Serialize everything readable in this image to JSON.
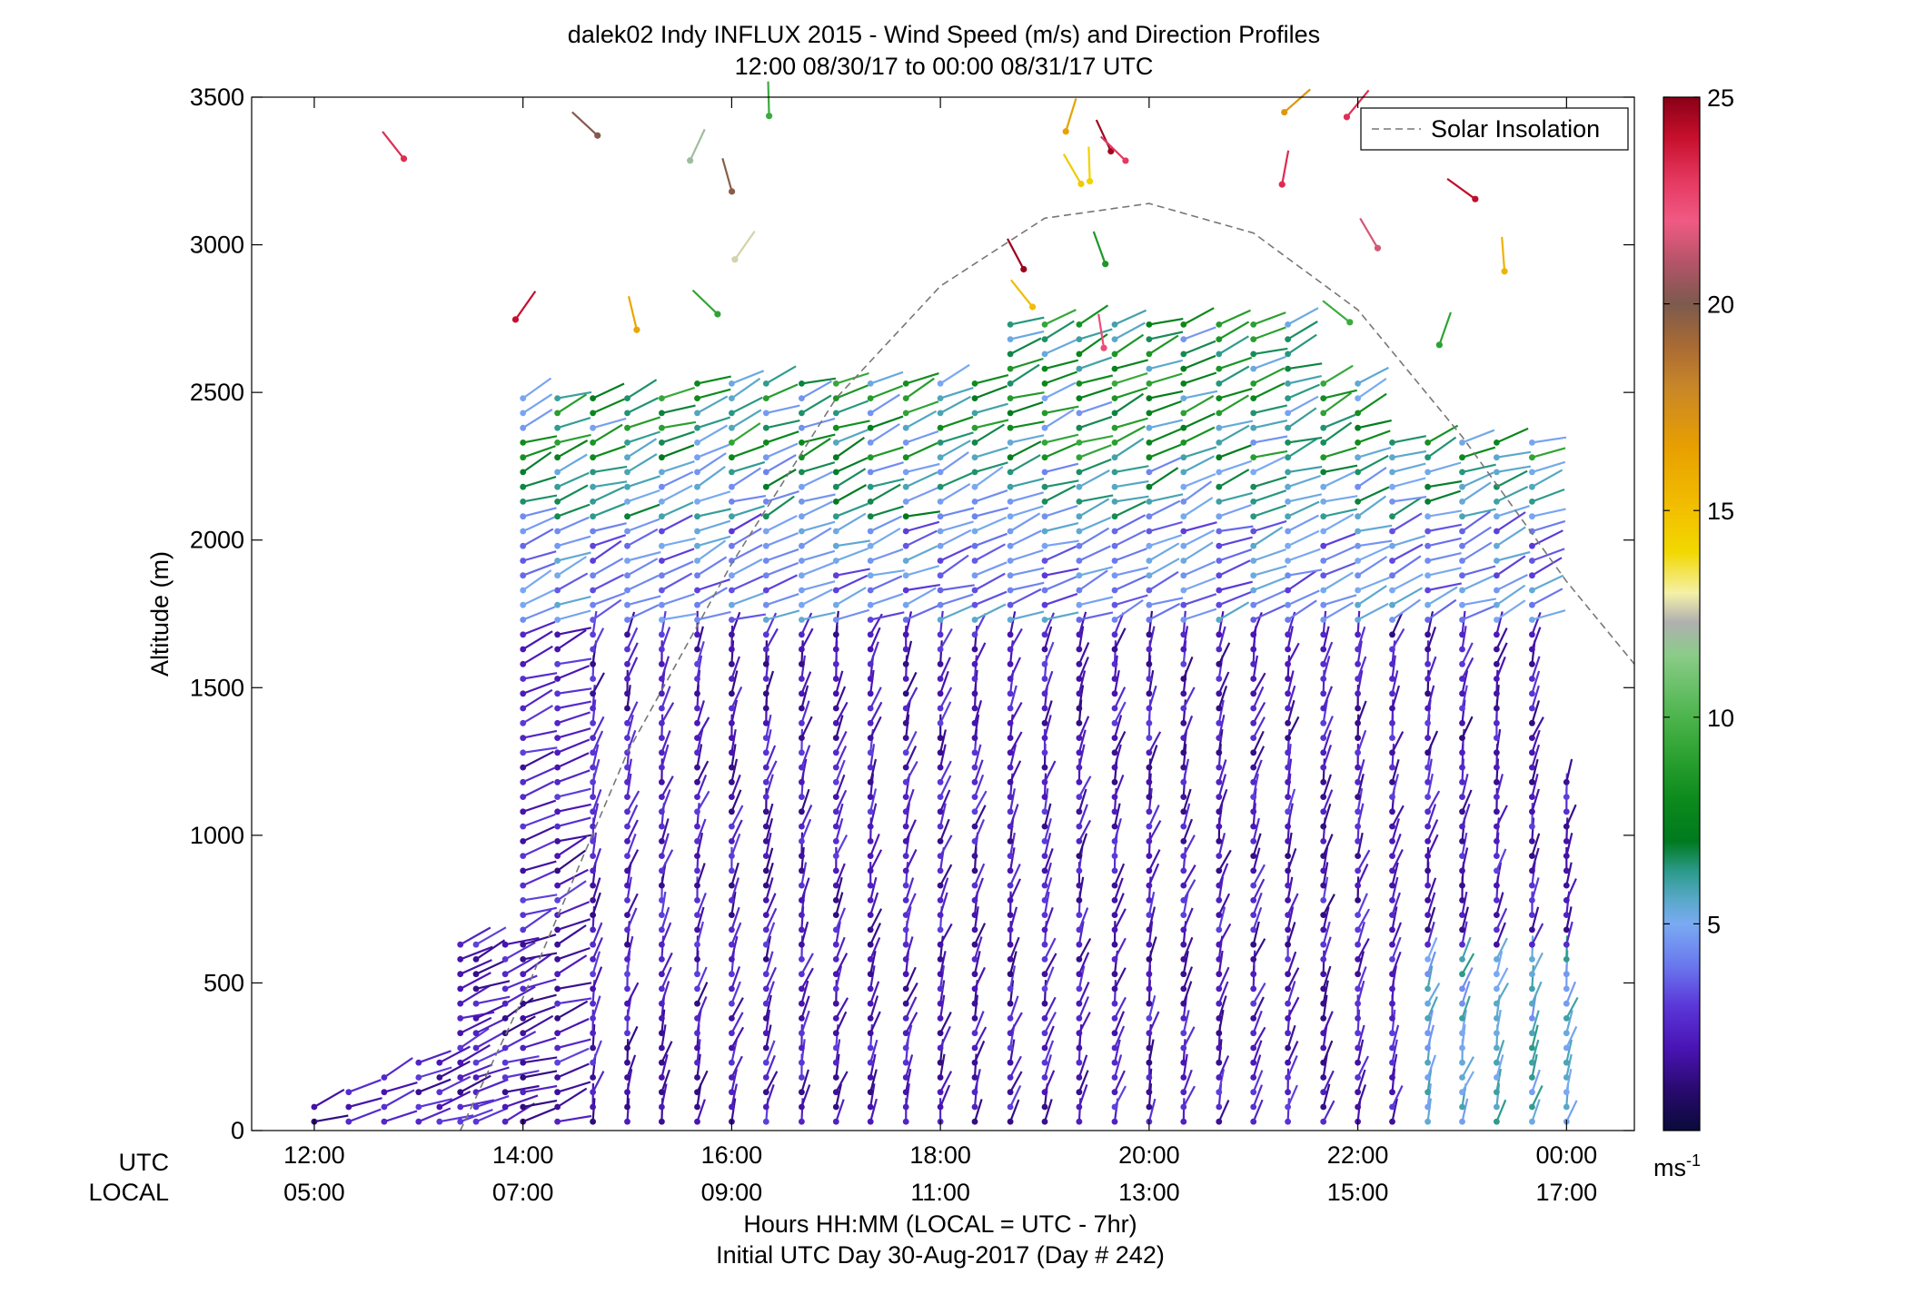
{
  "chart_data": {
    "type": "scatter",
    "subtype": "wind-barb profile",
    "title_line1": "dalek02 Indy INFLUX 2015 - Wind Speed (m/s) and Direction Profiles",
    "title_line2": "12:00 08/30/17 to 00:00 08/31/17  UTC",
    "ylabel": "Altitude (m)",
    "xlabel": "Hours HH:MM  (LOCAL = UTC - 7hr)",
    "xlabel2": "Initial UTC Day 30-Aug-2017 (Day # 242)",
    "row_label_utc": "UTC",
    "row_label_local": "LOCAL",
    "x_ticks_utc": [
      "12:00",
      "14:00",
      "16:00",
      "18:00",
      "20:00",
      "22:00",
      "00:00"
    ],
    "x_ticks_local": [
      "05:00",
      "07:00",
      "09:00",
      "11:00",
      "13:00",
      "15:00",
      "17:00"
    ],
    "x_tick_hours": [
      12,
      14,
      16,
      18,
      20,
      22,
      24
    ],
    "xlim": [
      11.4,
      24.65
    ],
    "ylim": [
      0,
      3500
    ],
    "y_ticks": [
      0,
      500,
      1000,
      1500,
      2000,
      2500,
      3000,
      3500
    ],
    "legend": {
      "entries": [
        "Solar Insolation"
      ],
      "position": "top-right"
    },
    "colorbar": {
      "ticks": [
        5,
        10,
        15,
        20,
        25
      ],
      "range": [
        0,
        25
      ],
      "unit_base": "ms",
      "unit_exp": "-1",
      "colors": [
        [
          0,
          "#0a0a3a"
        ],
        [
          1,
          "#2a0a70"
        ],
        [
          2,
          "#4a14b4"
        ],
        [
          3,
          "#5a36d8"
        ],
        [
          4,
          "#6a78ee"
        ],
        [
          5,
          "#7aaaf2"
        ],
        [
          5.6,
          "#58a8c8"
        ],
        [
          6.3,
          "#2a9a88"
        ],
        [
          7,
          "#007a1e"
        ],
        [
          8,
          "#0c8a1c"
        ],
        [
          9,
          "#2aa030"
        ],
        [
          10,
          "#4cb44c"
        ],
        [
          11.5,
          "#8acc88"
        ],
        [
          12.3,
          "#b0b0b0"
        ],
        [
          13,
          "#f4f0a8"
        ],
        [
          14,
          "#f2d800"
        ],
        [
          15,
          "#f2c000"
        ],
        [
          16.5,
          "#e8a000"
        ],
        [
          18,
          "#c88628"
        ],
        [
          19,
          "#a86a34"
        ],
        [
          20,
          "#7c5a4e"
        ],
        [
          21,
          "#b45468"
        ],
        [
          22,
          "#f05a84"
        ],
        [
          23,
          "#e43860"
        ],
        [
          24,
          "#c8102e"
        ],
        [
          25,
          "#8a0016"
        ]
      ]
    },
    "solar_insolation": {
      "style": "dashed",
      "color": "#777777",
      "x": [
        13.4,
        14,
        15,
        16,
        17,
        18,
        19,
        20,
        21,
        22,
        23,
        24,
        24.65
      ],
      "y": [
        0,
        450,
        1280,
        1920,
        2480,
        2860,
        3090,
        3140,
        3040,
        2780,
        2350,
        1860,
        1580
      ]
    },
    "profiles_hours": [
      12.0,
      12.33,
      12.67,
      13.0,
      13.2,
      13.4,
      13.55,
      13.83,
      14.0,
      14.33,
      14.67,
      15.0,
      15.33,
      15.67,
      16.0,
      16.33,
      16.67,
      17.0,
      17.33,
      17.67,
      18.0,
      18.33,
      18.67,
      19.0,
      19.33,
      19.67,
      20.0,
      20.33,
      20.67,
      21.0,
      21.33,
      21.67,
      22.0,
      22.33,
      22.67,
      23.0,
      23.33,
      23.67,
      24.0
    ]
  }
}
